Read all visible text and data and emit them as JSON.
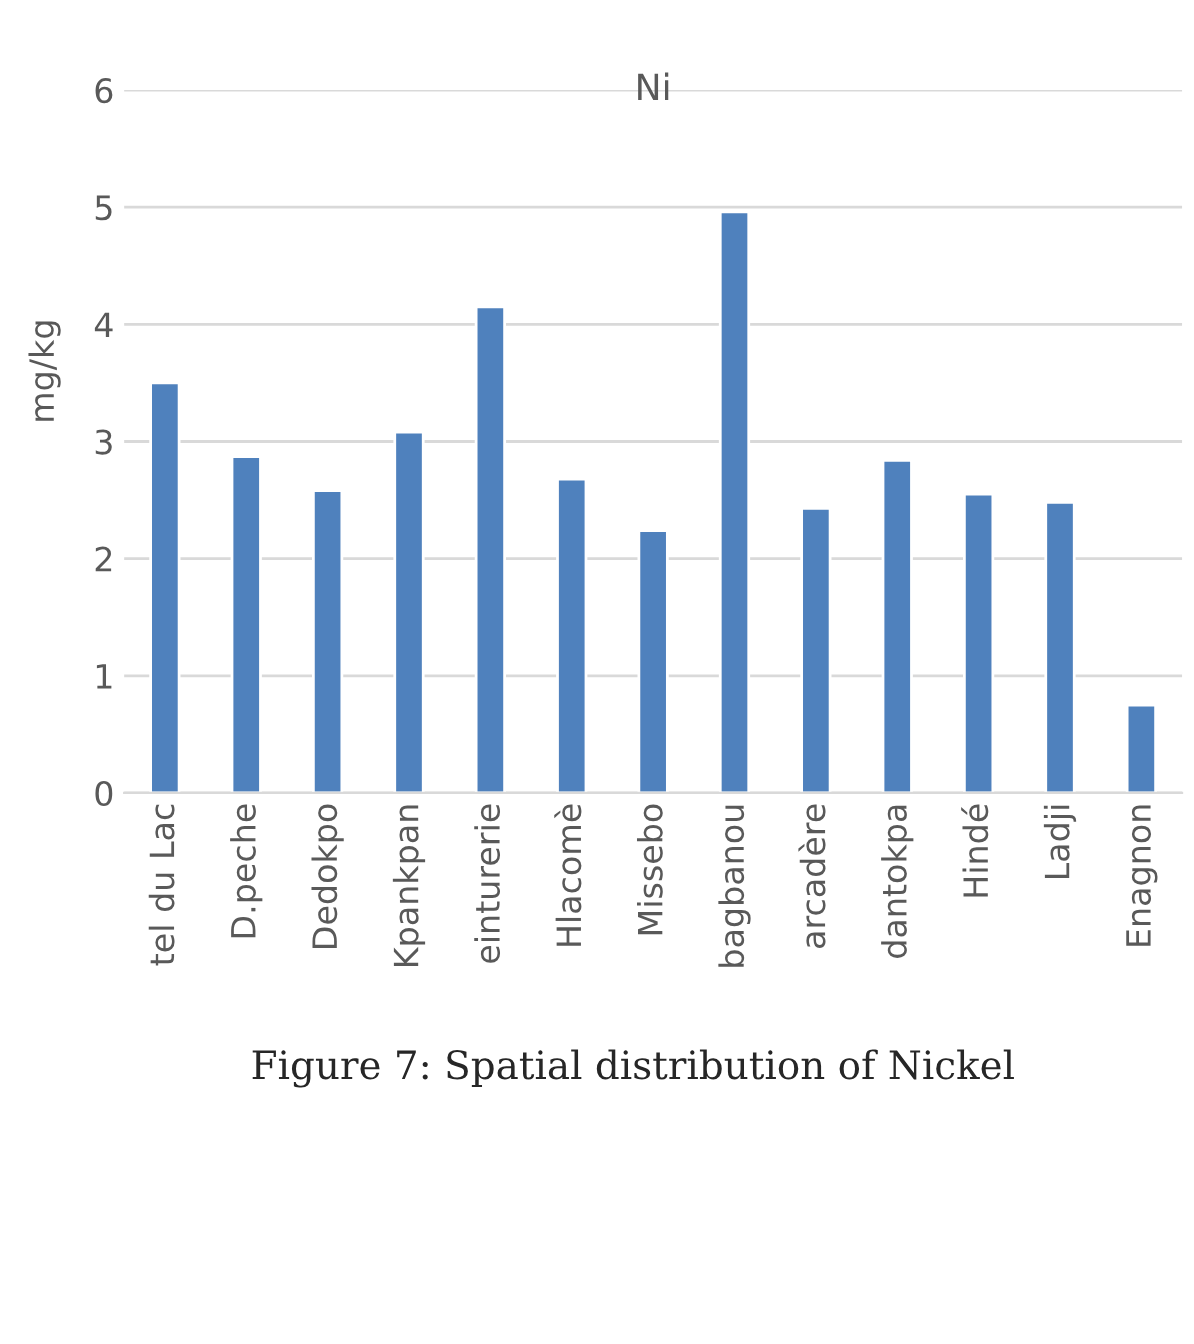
{
  "chart_data": {
    "type": "bar",
    "title": "Ni",
    "ylabel": "mg/kg",
    "categories": [
      "tel du Lac",
      "D.peche",
      "Dedokpo",
      "Kpankpan",
      "einturerie",
      "Hlacomè",
      "Missebo",
      "bagbanou",
      "arcadère",
      "dantokpa",
      "Hindé",
      "Ladji",
      "Enagnon"
    ],
    "values": [
      3.5,
      2.87,
      2.58,
      3.08,
      4.15,
      2.68,
      2.24,
      4.96,
      2.43,
      2.84,
      2.55,
      2.48,
      0.75
    ],
    "color": "#4f81bd",
    "ylim": [
      0,
      6
    ],
    "yticks": [
      0,
      1,
      2,
      3,
      4,
      5,
      6
    ],
    "grid": "y",
    "legend": false,
    "annotations": [
      "Figure 7: Spatial distribution of Nickel"
    ]
  }
}
